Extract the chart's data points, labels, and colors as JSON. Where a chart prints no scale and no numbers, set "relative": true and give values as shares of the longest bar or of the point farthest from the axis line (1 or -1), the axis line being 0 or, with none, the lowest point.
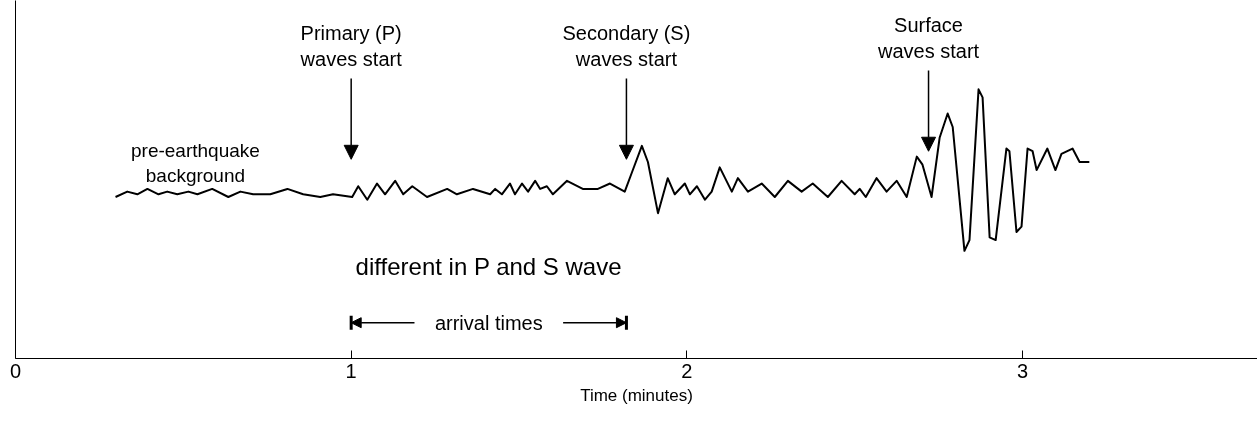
{
  "chart_data": {
    "type": "line",
    "relative": true,
    "xlabel": "Time (minutes)",
    "xlim": [
      0,
      3.7
    ],
    "xticks": [
      0,
      1,
      2,
      3
    ],
    "annotations": [
      "pre-earthquake\nbackground",
      "Primary (P)\nwaves start",
      "Secondary (S)\nwaves start",
      "Surface\nwaves start",
      "different in P and S wave",
      "arrival times"
    ],
    "series": [
      {
        "color": "#000000",
        "x": [
          0.298,
          0.333,
          0.363,
          0.393,
          0.426,
          0.452,
          0.482,
          0.515,
          0.542,
          0.586,
          0.634,
          0.67,
          0.708,
          0.759,
          0.81,
          0.857,
          0.908,
          0.946,
          1.003,
          1.021,
          1.048,
          1.077,
          1.101,
          1.131,
          1.155,
          1.182,
          1.226,
          1.286,
          1.315,
          1.363,
          1.414,
          1.429,
          1.449,
          1.473,
          1.488,
          1.509,
          1.527,
          1.548,
          1.563,
          1.583,
          1.601,
          1.643,
          1.69,
          1.735,
          1.771,
          1.815,
          1.836,
          1.866,
          1.884,
          1.914,
          1.943,
          1.964,
          1.994,
          2.009,
          2.03,
          2.054,
          2.074,
          2.098,
          2.134,
          2.152,
          2.182,
          2.223,
          2.262,
          2.301,
          2.342,
          2.375,
          2.42,
          2.461,
          2.5,
          2.515,
          2.533,
          2.565,
          2.595,
          2.625,
          2.655,
          2.685,
          2.702,
          2.729,
          2.753,
          2.777,
          2.792,
          2.827,
          2.842,
          2.869,
          2.881,
          2.902,
          2.92,
          2.952,
          2.961,
          2.982,
          2.997,
          3.015,
          3.03,
          3.042,
          3.074,
          3.098,
          3.116,
          3.149,
          3.17,
          3.199
        ],
        "values": [
          0.6,
          0.62,
          0.61,
          0.63,
          0.61,
          0.62,
          0.61,
          0.62,
          0.61,
          0.63,
          0.6,
          0.62,
          0.61,
          0.61,
          0.63,
          0.61,
          0.6,
          0.61,
          0.6,
          0.64,
          0.59,
          0.65,
          0.61,
          0.66,
          0.61,
          0.64,
          0.6,
          0.63,
          0.61,
          0.63,
          0.61,
          0.63,
          0.61,
          0.65,
          0.61,
          0.65,
          0.62,
          0.66,
          0.63,
          0.64,
          0.61,
          0.66,
          0.63,
          0.63,
          0.65,
          0.62,
          0.69,
          0.79,
          0.73,
          0.54,
          0.67,
          0.61,
          0.65,
          0.61,
          0.64,
          0.59,
          0.62,
          0.71,
          0.62,
          0.67,
          0.62,
          0.65,
          0.6,
          0.66,
          0.62,
          0.65,
          0.6,
          0.66,
          0.61,
          0.63,
          0.6,
          0.67,
          0.62,
          0.66,
          0.6,
          0.75,
          0.72,
          0.6,
          0.82,
          0.91,
          0.86,
          0.4,
          0.44,
          1.0,
          0.97,
          0.45,
          0.44,
          0.78,
          0.77,
          0.47,
          0.49,
          0.78,
          0.77,
          0.7,
          0.78,
          0.7,
          0.76,
          0.78,
          0.73,
          0.73
        ]
      }
    ]
  }
}
